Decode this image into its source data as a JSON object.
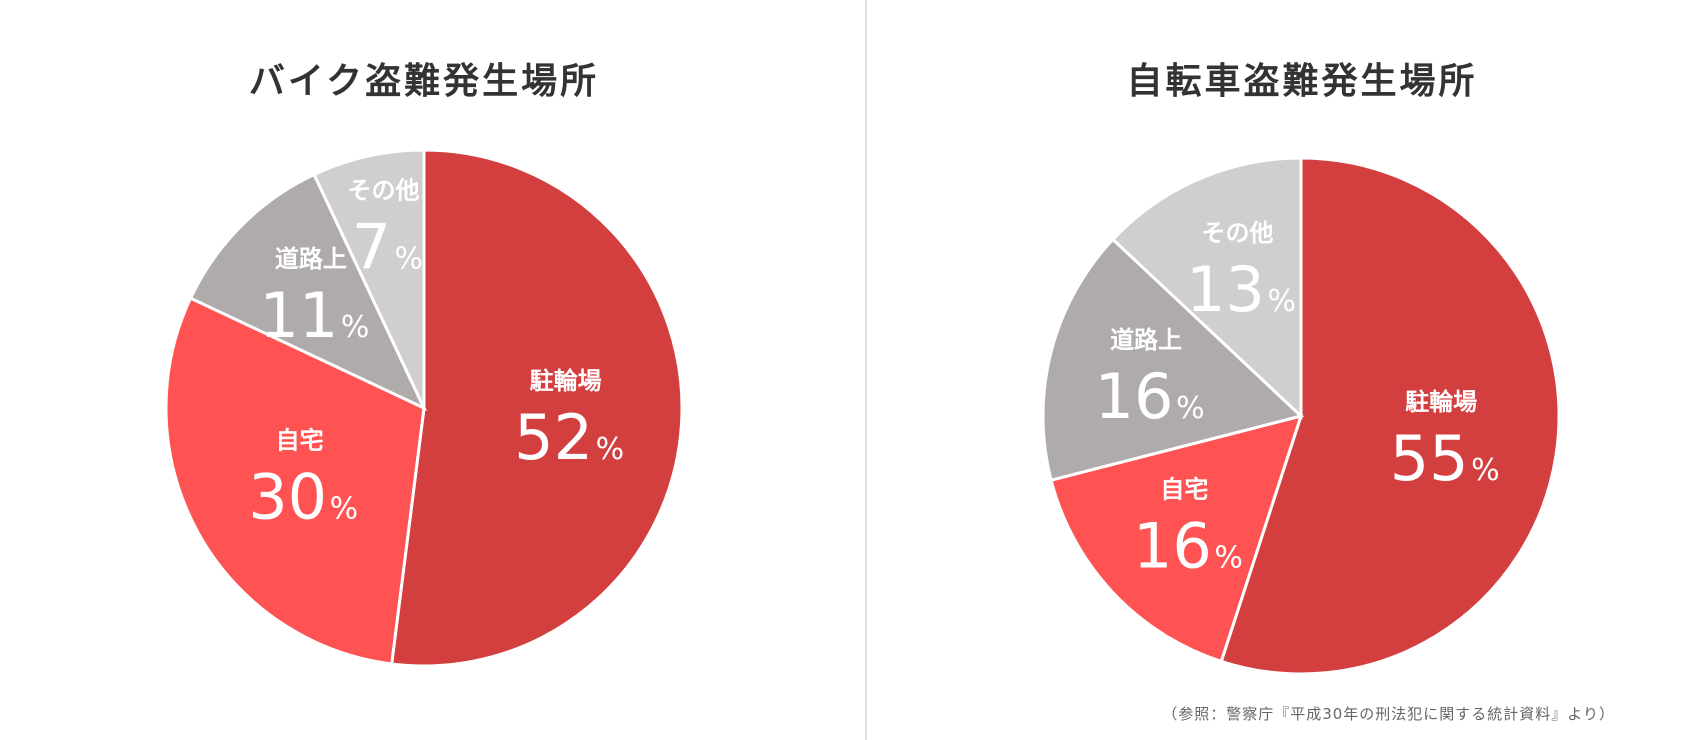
{
  "chart_data": [
    {
      "type": "pie",
      "title": "バイク盗難発生場所",
      "start": "top",
      "direction": "clockwise",
      "slices": [
        {
          "label": "駐輪場",
          "value": 52,
          "unit": "%",
          "color": "#d33e3f"
        },
        {
          "label": "自宅",
          "value": 30,
          "unit": "%",
          "color": "#ff5252"
        },
        {
          "label": "道路上",
          "value": 11,
          "unit": "%",
          "color": "#afabaa"
        },
        {
          "label": "その他",
          "value": 7,
          "unit": "%",
          "color": "#d0cecf"
        }
      ]
    },
    {
      "type": "pie",
      "title": "自転車盗難発生場所",
      "start": "top",
      "direction": "clockwise",
      "slices": [
        {
          "label": "駐輪場",
          "value": 55,
          "unit": "%",
          "color": "#d33e3f"
        },
        {
          "label": "自宅",
          "value": 16,
          "unit": "%",
          "color": "#ff5252"
        },
        {
          "label": "道路上",
          "value": 16,
          "unit": "%",
          "color": "#afabaa"
        },
        {
          "label": "その他",
          "value": 13,
          "unit": "%",
          "color": "#d0cecf"
        }
      ]
    }
  ],
  "source": "（参照：警察庁『平成30年の刑法犯に関する統計資料』より）"
}
